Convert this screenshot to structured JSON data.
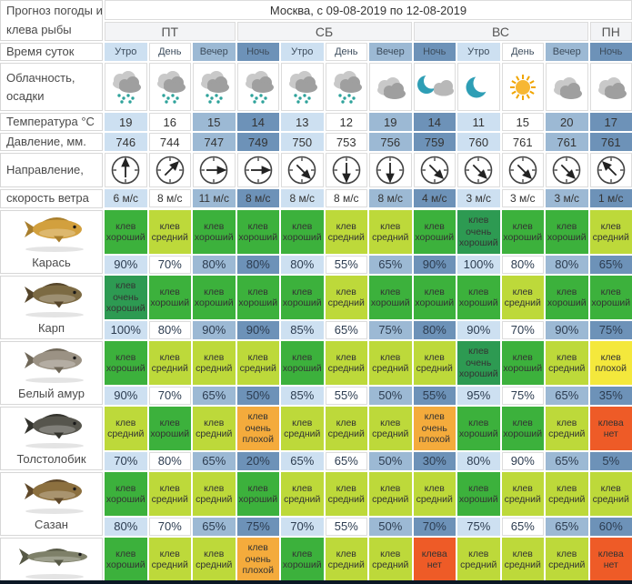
{
  "page_background": "#0c1825",
  "header": {
    "corner_title": "Прогноз погоды и клева рыбы",
    "location_title": "Москва, с 09-08-2019 по 12-08-2019",
    "days": [
      {
        "label": "ПТ",
        "span": 3
      },
      {
        "label": "СБ",
        "span": 4
      },
      {
        "label": "ВС",
        "span": 4
      },
      {
        "label": "ПН",
        "span": 1
      }
    ]
  },
  "row_labels": {
    "time": "Время суток",
    "clouds": "Облачность, осадки",
    "temperature": "Температура °C",
    "pressure": "Давление, мм.",
    "direction": "Направление,",
    "wind_speed": "скорость ветра"
  },
  "shades": {
    "morning": "#cde0f1",
    "day": "#ffffff",
    "evening": "#9cb9d4",
    "night": "#6d92b8"
  },
  "columns": [
    {
      "time": "Утро",
      "shade": "morning",
      "weather": "rain-cloud",
      "temperature": "19",
      "pressure": "746",
      "wind_direction": "N",
      "wind_deg": 0,
      "wind_speed": "6 м/с"
    },
    {
      "time": "День",
      "shade": "day",
      "weather": "rain-cloud",
      "temperature": "16",
      "pressure": "744",
      "wind_direction": "NE",
      "wind_deg": 45,
      "wind_speed": "8 м/с"
    },
    {
      "time": "Вечер",
      "shade": "evening",
      "weather": "rain-cloud",
      "temperature": "15",
      "pressure": "747",
      "wind_direction": "E",
      "wind_deg": 90,
      "wind_speed": "11 м/с"
    },
    {
      "time": "Ночь",
      "shade": "night",
      "weather": "rain-cloud",
      "temperature": "14",
      "pressure": "749",
      "wind_direction": "E",
      "wind_deg": 90,
      "wind_speed": "8 м/с"
    },
    {
      "time": "Утро",
      "shade": "morning",
      "weather": "rain-cloud",
      "temperature": "13",
      "pressure": "750",
      "wind_direction": "SE",
      "wind_deg": 135,
      "wind_speed": "8 м/с"
    },
    {
      "time": "День",
      "shade": "day",
      "weather": "rain-cloud",
      "temperature": "12",
      "pressure": "753",
      "wind_direction": "S",
      "wind_deg": 180,
      "wind_speed": "8 м/с"
    },
    {
      "time": "Вечер",
      "shade": "evening",
      "weather": "clouds",
      "temperature": "19",
      "pressure": "756",
      "wind_direction": "S",
      "wind_deg": 180,
      "wind_speed": "8 м/с"
    },
    {
      "time": "Ночь",
      "shade": "night",
      "weather": "moon-with-cloud",
      "temperature": "14",
      "pressure": "759",
      "wind_direction": "SE",
      "wind_deg": 135,
      "wind_speed": "4 м/с"
    },
    {
      "time": "Утро",
      "shade": "morning",
      "weather": "crescent-moon",
      "temperature": "11",
      "pressure": "760",
      "wind_direction": "SE",
      "wind_deg": 135,
      "wind_speed": "3 м/с"
    },
    {
      "time": "День",
      "shade": "day",
      "weather": "sun",
      "temperature": "15",
      "pressure": "761",
      "wind_direction": "SE",
      "wind_deg": 135,
      "wind_speed": "3 м/с"
    },
    {
      "time": "Вечер",
      "shade": "evening",
      "weather": "clouds",
      "temperature": "20",
      "pressure": "761",
      "wind_direction": "SE",
      "wind_deg": 135,
      "wind_speed": "3 м/с"
    },
    {
      "time": "Ночь",
      "shade": "night",
      "weather": "clouds",
      "temperature": "17",
      "pressure": "761",
      "wind_direction": "NW",
      "wind_deg": 315,
      "wind_speed": "1 м/с"
    }
  ],
  "bite_levels": {
    "very_good": {
      "label": "клев очень хороший",
      "color": "#2d9a52"
    },
    "good": {
      "label": "клев хороший",
      "color": "#3cb13c"
    },
    "medium": {
      "label": "клев средний",
      "color": "#bdd93a"
    },
    "bad": {
      "label": "клев плохой",
      "color": "#f4e83c"
    },
    "very_bad": {
      "label": "клев очень плохой",
      "color": "#f4ab3c"
    },
    "none": {
      "label": "клева нет",
      "color": "#ee5b27"
    }
  },
  "fish": [
    {
      "name": "Карась",
      "icon": "crucian-carp-image",
      "body_color": "#d2a03e",
      "fin_color": "#a87e2c",
      "shape": "carp",
      "bites": [
        "good",
        "medium",
        "good",
        "good",
        "good",
        "medium",
        "medium",
        "good",
        "very_good",
        "good",
        "good",
        "medium"
      ],
      "percents": [
        "90%",
        "70%",
        "80%",
        "80%",
        "80%",
        "55%",
        "65%",
        "90%",
        "100%",
        "80%",
        "80%",
        "65%"
      ]
    },
    {
      "name": "Карп",
      "icon": "carp-image",
      "body_color": "#7c6a43",
      "fin_color": "#55452a",
      "shape": "carp",
      "bites": [
        "very_good",
        "good",
        "good",
        "good",
        "good",
        "medium",
        "good",
        "good",
        "good",
        "medium",
        "good",
        "good"
      ],
      "percents": [
        "100%",
        "80%",
        "90%",
        "90%",
        "85%",
        "65%",
        "75%",
        "80%",
        "90%",
        "70%",
        "90%",
        "75%"
      ]
    },
    {
      "name": "Белый амур",
      "icon": "grass-carp-image",
      "body_color": "#9b9284",
      "fin_color": "#6f6758",
      "shape": "carp",
      "bites": [
        "good",
        "medium",
        "medium",
        "medium",
        "good",
        "medium",
        "medium",
        "medium",
        "very_good",
        "good",
        "medium",
        "bad"
      ],
      "percents": [
        "90%",
        "70%",
        "65%",
        "50%",
        "85%",
        "55%",
        "50%",
        "55%",
        "95%",
        "75%",
        "65%",
        "35%"
      ]
    },
    {
      "name": "Толстолобик",
      "icon": "silver-carp-image",
      "body_color": "#56554d",
      "fin_color": "#33332d",
      "shape": "carp",
      "bites": [
        "medium",
        "good",
        "medium",
        "very_bad",
        "medium",
        "medium",
        "medium",
        "very_bad",
        "good",
        "good",
        "medium",
        "none"
      ],
      "percents": [
        "70%",
        "80%",
        "65%",
        "20%",
        "65%",
        "65%",
        "50%",
        "30%",
        "80%",
        "90%",
        "65%",
        "5%"
      ]
    },
    {
      "name": "Сазан",
      "icon": "wild-carp-image",
      "body_color": "#8c703f",
      "fin_color": "#60492a",
      "shape": "carp",
      "bites": [
        "good",
        "medium",
        "medium",
        "good",
        "medium",
        "medium",
        "medium",
        "medium",
        "good",
        "medium",
        "medium",
        "medium"
      ],
      "percents": [
        "80%",
        "70%",
        "65%",
        "75%",
        "70%",
        "55%",
        "50%",
        "70%",
        "75%",
        "65%",
        "65%",
        "60%"
      ]
    },
    {
      "name": "",
      "icon": "pike-image",
      "body_color": "#7e8069",
      "fin_color": "#585a47",
      "shape": "pike",
      "bites": [
        "good",
        "medium",
        "medium",
        "very_bad",
        "good",
        "medium",
        "medium",
        "none",
        "medium",
        "medium",
        "medium",
        "none"
      ],
      "percents": []
    }
  ]
}
